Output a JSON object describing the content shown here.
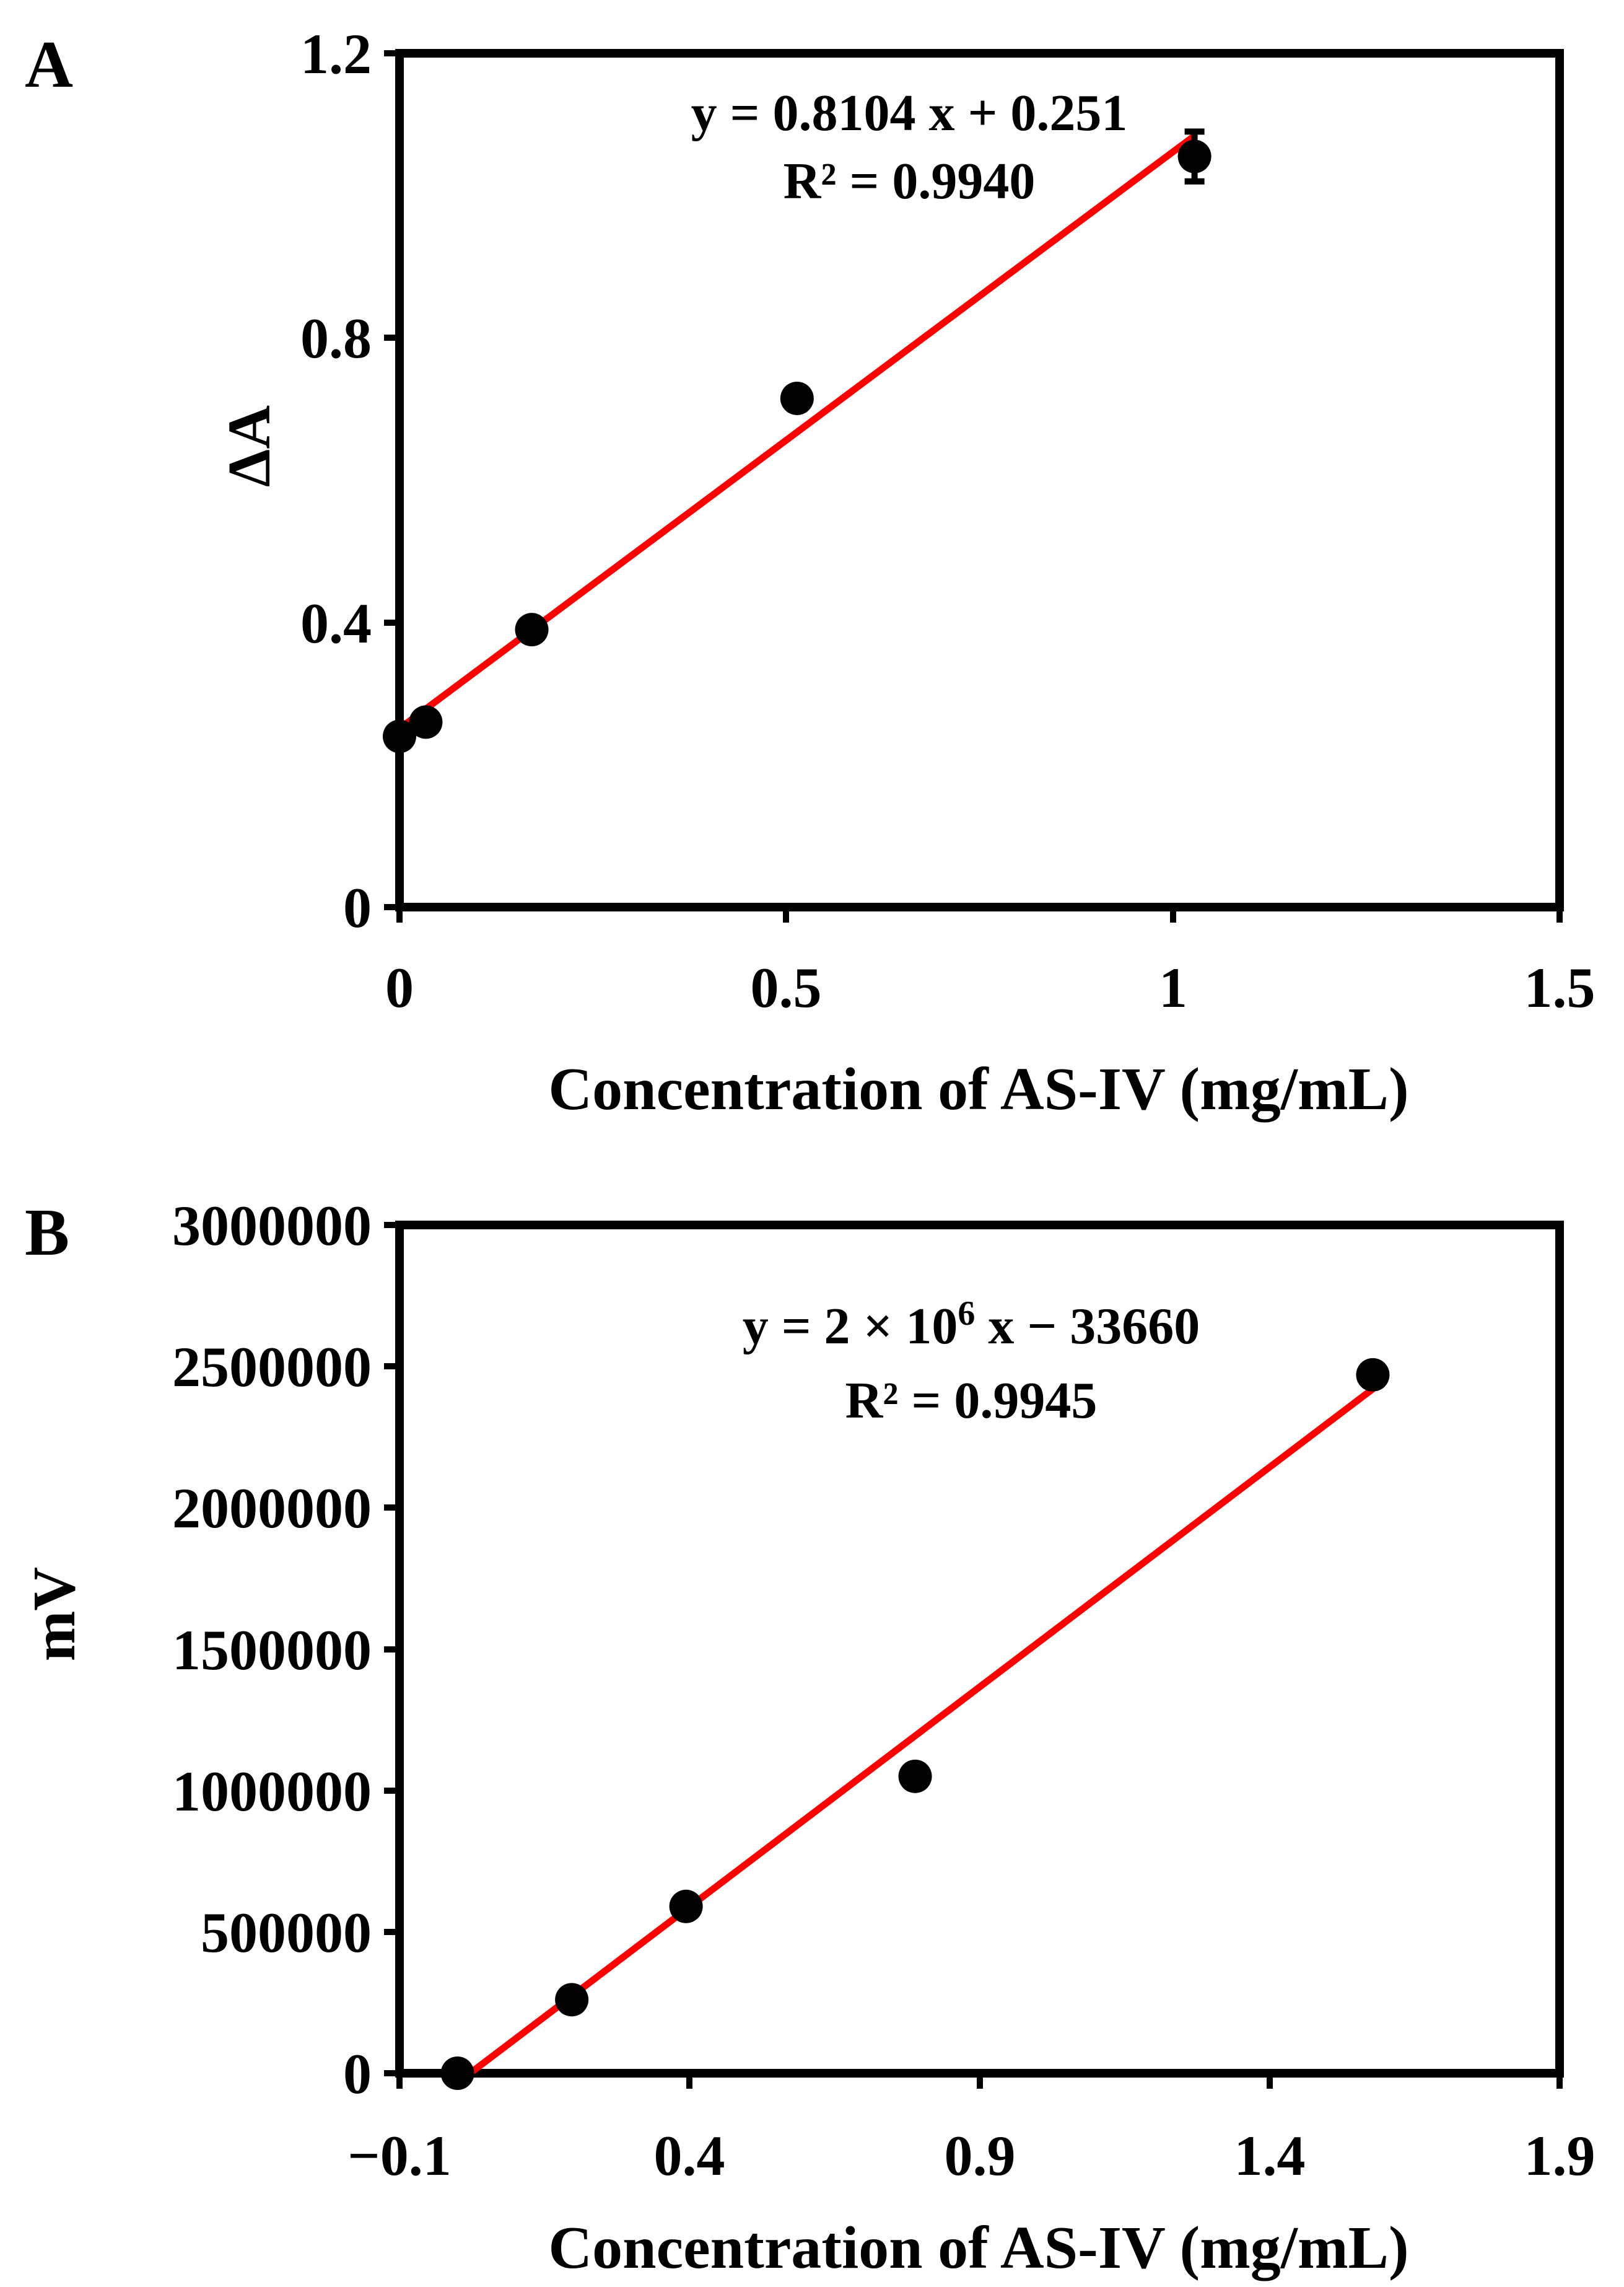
{
  "chart_data": [
    {
      "panel": "A",
      "type": "scatter",
      "xlabel": "Concentration of AS-IV (mg/mL)",
      "ylabel": "ΔA",
      "xlim": [
        0,
        1.5
      ],
      "ylim": [
        0,
        1.2
      ],
      "xticks": [
        "0",
        "0.5",
        "1",
        "1.5"
      ],
      "yticks": [
        "0",
        "0.4",
        "0.8",
        "1.2"
      ],
      "points": {
        "x": [
          0.0,
          0.034,
          0.171,
          0.514,
          1.028
        ],
        "y": [
          0.24,
          0.26,
          0.39,
          0.715,
          1.055
        ],
        "error": [
          0,
          0,
          0,
          0,
          0.035
        ]
      },
      "trendline": {
        "slope": 0.8104,
        "intercept": 0.251,
        "x_range": [
          0.0,
          1.028
        ]
      },
      "equation": "y = 0.8104 x + 0.251",
      "r_squared": "R² = 0.9940",
      "point_color": "#000000",
      "line_color": "#ff0000"
    },
    {
      "panel": "B",
      "type": "scatter",
      "xlabel": "Concentration of AS-IV (mg/mL)",
      "ylabel": "mV",
      "xlim": [
        -0.1,
        1.9
      ],
      "ylim": [
        0,
        3000000
      ],
      "xticks": [
        "−0.1",
        "0.4",
        "0.9",
        "1.4",
        "1.9"
      ],
      "yticks": [
        "0",
        "500000",
        "1000000",
        "1500000",
        "2000000",
        "2500000",
        "3000000"
      ],
      "points": {
        "x": [
          0.0,
          0.197,
          0.394,
          0.789,
          1.578
        ],
        "y": [
          0,
          260000,
          590000,
          1050000,
          2470000
        ],
        "error": [
          0,
          0,
          0,
          0,
          0
        ]
      },
      "trendline": {
        "slope": 1555000,
        "intercept": -33660,
        "x_range": [
          0.022,
          1.578
        ]
      },
      "equation_parts": {
        "pre": "y = 2 × 10",
        "sup": "6",
        "post": " x − 33660"
      },
      "r_squared": "R² = 0.9945",
      "point_color": "#000000",
      "line_color": "#ff0000"
    }
  ]
}
